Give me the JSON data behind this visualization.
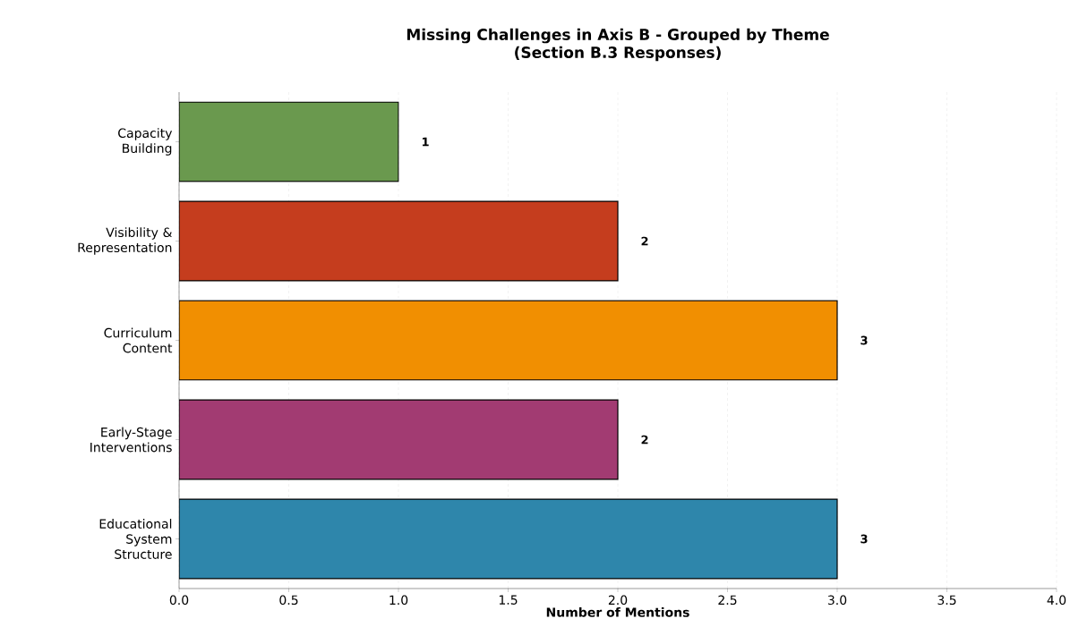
{
  "chart_data": {
    "type": "bar",
    "orientation": "horizontal",
    "title": "Missing Challenges in Axis B - Grouped by Theme",
    "subtitle": "(Section B.3 Responses)",
    "xlabel": "Number of Mentions",
    "categories": [
      "Capacity Building",
      "Visibility & Representation",
      "Curriculum Content",
      "Early-Stage Interventions",
      "Educational System Structure"
    ],
    "values": [
      1,
      2,
      3,
      2,
      3
    ],
    "colors": [
      "#6a994e",
      "#c53d1e",
      "#f18f01",
      "#a23b72",
      "#2e86ab"
    ],
    "xlim": [
      0,
      4
    ],
    "xticks": [
      {
        "value": 0,
        "label": "0.0"
      },
      {
        "value": 0.5,
        "label": "0.5"
      },
      {
        "value": 1,
        "label": "1.0"
      },
      {
        "value": 1.5,
        "label": "1.5"
      },
      {
        "value": 2,
        "label": "2.0"
      },
      {
        "value": 2.5,
        "label": "2.5"
      },
      {
        "value": 3,
        "label": "3.0"
      },
      {
        "value": 3.5,
        "label": "3.5"
      },
      {
        "value": 4,
        "label": "4.0"
      }
    ],
    "grid": "x",
    "data_labels": true
  }
}
